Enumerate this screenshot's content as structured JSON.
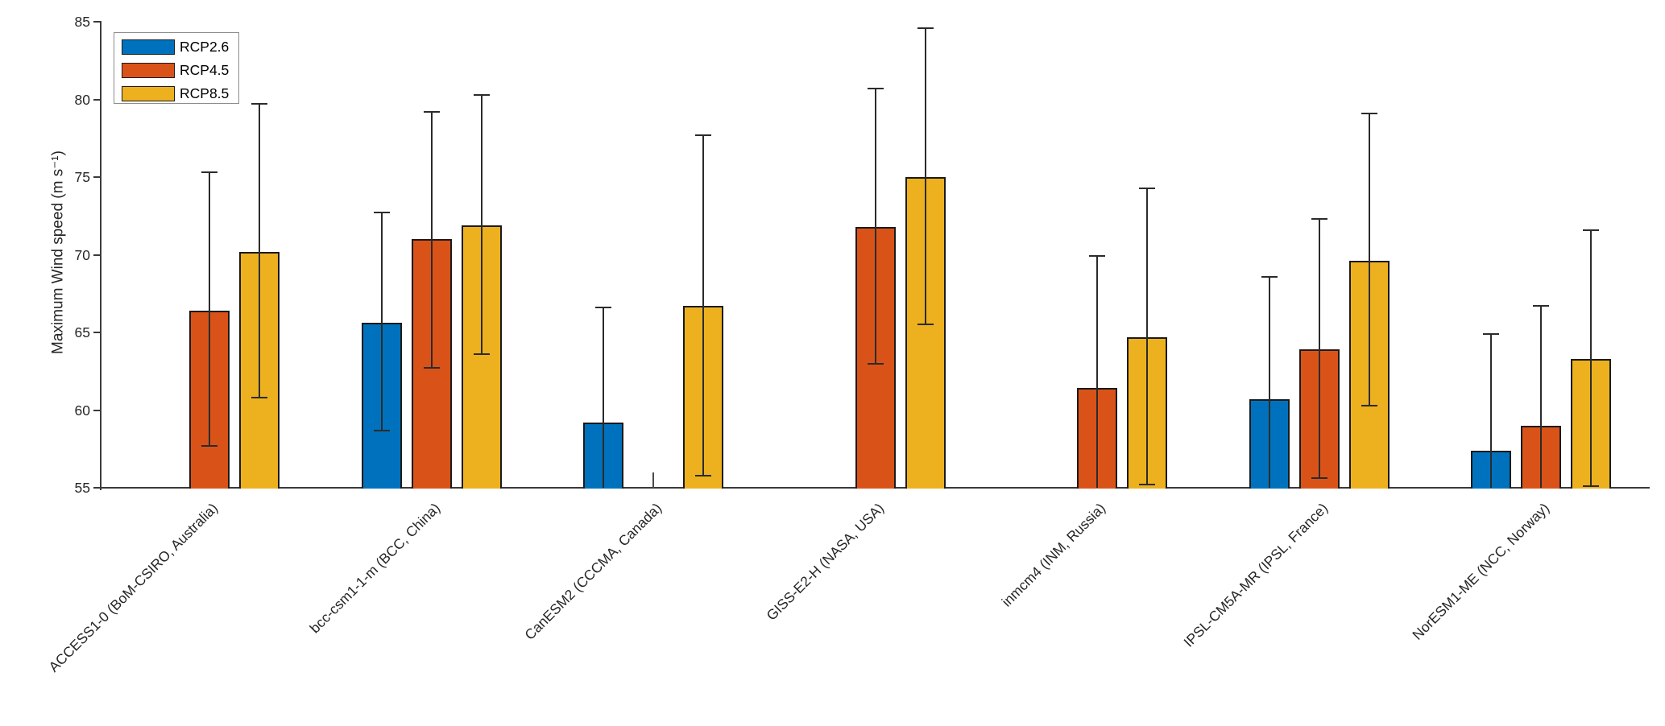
{
  "chart_data": {
    "type": "bar",
    "title": "",
    "xlabel": "",
    "ylabel": "Maximum Wind speed (m s⁻¹)",
    "ylim": [
      55,
      85
    ],
    "yticks": [
      55,
      60,
      65,
      70,
      75,
      80,
      85
    ],
    "grid": false,
    "legend_position": "top-left",
    "categories": [
      "ACCESS1-0 (BoM-CSIRO, Australia)",
      "bcc-csm1-1-m (BCC, China)",
      "CanESM2 (CCCMA, Canada)",
      "GISS-E2-H (NASA, USA)",
      "inmcm4 (INM, Russia)",
      "IPSL-CM5A-MR  (IPSL, France)",
      "NorESM1-ME (NCC, Norway)"
    ],
    "series": [
      {
        "name": "RCP2.6",
        "color": "#0072BD",
        "values": [
          null,
          65.6,
          59.2,
          null,
          null,
          60.7,
          57.4
        ],
        "err_low": [
          null,
          58.7,
          null,
          null,
          null,
          null,
          null
        ],
        "err_high": [
          null,
          72.7,
          66.6,
          null,
          null,
          68.6,
          64.9
        ]
      },
      {
        "name": "RCP4.5",
        "color": "#D95319",
        "values": [
          66.4,
          71.0,
          null,
          71.8,
          61.4,
          63.9,
          59.0
        ],
        "err_low": [
          57.7,
          62.7,
          null,
          63.0,
          null,
          55.6,
          null
        ],
        "err_high": [
          75.3,
          79.2,
          56.0,
          80.7,
          69.9,
          72.3,
          66.7
        ]
      },
      {
        "name": "RCP8.5",
        "color": "#EDB120",
        "values": [
          70.2,
          71.9,
          66.7,
          75.0,
          64.7,
          69.6,
          63.3
        ],
        "err_low": [
          60.8,
          63.6,
          55.8,
          65.5,
          55.2,
          60.3,
          55.1
        ],
        "err_high": [
          79.7,
          80.3,
          77.7,
          84.6,
          74.3,
          79.1,
          71.6
        ]
      }
    ],
    "error_bar_note_clipped_lower": "err_low null with a bar value means the lower whisker extends below the 55 axis limit; a null bar value with err_high means the bar top lies below 55 and only a whisker stub is visible"
  }
}
